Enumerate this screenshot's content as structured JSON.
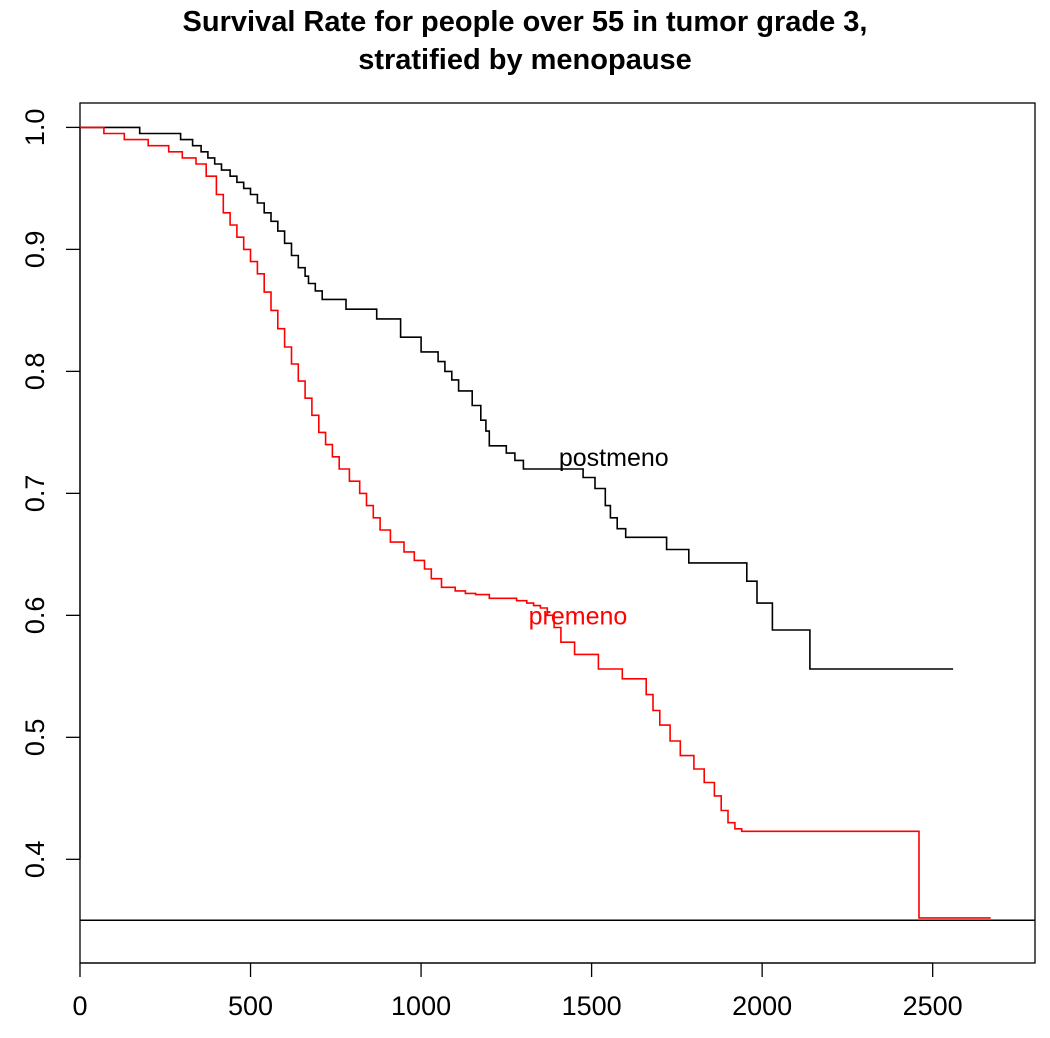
{
  "chart_data": {
    "type": "line",
    "title": "Survival Rate for people over 55 in tumor grade 3,",
    "subtitle": "stratified by menopause",
    "xlabel": "",
    "ylabel": "",
    "xlim": [
      0,
      2800
    ],
    "ylim": [
      0.315,
      1.02
    ],
    "x_ticks": [
      0,
      500,
      1000,
      1500,
      2000,
      2500
    ],
    "x_tick_labels": [
      "0",
      "500",
      "1000",
      "1500",
      "2000",
      "2500"
    ],
    "y_ticks": [
      0.4,
      0.5,
      0.6,
      0.7,
      0.8,
      0.9,
      1.0
    ],
    "y_tick_labels": [
      "0.4",
      "0.5",
      "0.6",
      "0.7",
      "0.8",
      "0.9",
      "1.0"
    ],
    "grid": false,
    "legend": "none",
    "reference_line": {
      "y": 0.35,
      "color": "#000000"
    },
    "step": true,
    "series": [
      {
        "name": "postmeno",
        "color": "#000000",
        "label_at": {
          "x": 1565,
          "y": 0.73
        },
        "x": [
          0,
          175,
          295,
          330,
          355,
          375,
          395,
          415,
          440,
          460,
          480,
          500,
          520,
          540,
          560,
          580,
          600,
          620,
          640,
          660,
          670,
          690,
          710,
          740,
          780,
          870,
          940,
          1000,
          1050,
          1070,
          1090,
          1110,
          1150,
          1175,
          1190,
          1200,
          1210,
          1250,
          1275,
          1300,
          1450,
          1475,
          1510,
          1540,
          1555,
          1575,
          1600,
          1720,
          1785,
          1955,
          1985,
          2030,
          2140,
          2560
        ],
        "y": [
          1.0,
          0.995,
          0.99,
          0.985,
          0.98,
          0.975,
          0.97,
          0.965,
          0.96,
          0.955,
          0.95,
          0.945,
          0.938,
          0.93,
          0.923,
          0.915,
          0.905,
          0.895,
          0.885,
          0.878,
          0.872,
          0.866,
          0.859,
          0.859,
          0.851,
          0.843,
          0.828,
          0.816,
          0.808,
          0.8,
          0.793,
          0.784,
          0.772,
          0.76,
          0.751,
          0.739,
          0.739,
          0.733,
          0.727,
          0.72,
          0.72,
          0.713,
          0.704,
          0.69,
          0.68,
          0.671,
          0.664,
          0.654,
          0.643,
          0.628,
          0.61,
          0.588,
          0.556,
          0.556
        ]
      },
      {
        "name": "premeno",
        "color": "#ff0000",
        "label_at": {
          "x": 1460,
          "y": 0.6
        },
        "x": [
          0,
          70,
          130,
          200,
          260,
          300,
          340,
          370,
          400,
          420,
          440,
          460,
          480,
          500,
          520,
          540,
          560,
          580,
          600,
          620,
          640,
          660,
          680,
          700,
          720,
          740,
          760,
          790,
          820,
          840,
          860,
          880,
          910,
          950,
          980,
          1010,
          1030,
          1060,
          1100,
          1130,
          1160,
          1200,
          1280,
          1310,
          1330,
          1350,
          1370,
          1390,
          1410,
          1450,
          1520,
          1590,
          1660,
          1680,
          1700,
          1730,
          1760,
          1800,
          1830,
          1860,
          1880,
          1900,
          1920,
          1940,
          1960,
          1990,
          2010,
          2060,
          2110,
          2200,
          2380,
          2460,
          2670
        ],
        "y": [
          1.0,
          0.995,
          0.99,
          0.985,
          0.98,
          0.975,
          0.97,
          0.96,
          0.945,
          0.93,
          0.92,
          0.91,
          0.9,
          0.89,
          0.88,
          0.865,
          0.85,
          0.835,
          0.82,
          0.806,
          0.792,
          0.778,
          0.764,
          0.75,
          0.74,
          0.73,
          0.72,
          0.71,
          0.7,
          0.69,
          0.68,
          0.67,
          0.66,
          0.652,
          0.645,
          0.638,
          0.63,
          0.623,
          0.62,
          0.618,
          0.617,
          0.614,
          0.612,
          0.61,
          0.608,
          0.606,
          0.6,
          0.59,
          0.578,
          0.568,
          0.556,
          0.548,
          0.535,
          0.522,
          0.51,
          0.497,
          0.485,
          0.474,
          0.463,
          0.452,
          0.44,
          0.43,
          0.425,
          0.423,
          0.423,
          0.423,
          0.423,
          0.423,
          0.423,
          0.423,
          0.423,
          0.352,
          0.352
        ]
      }
    ]
  }
}
